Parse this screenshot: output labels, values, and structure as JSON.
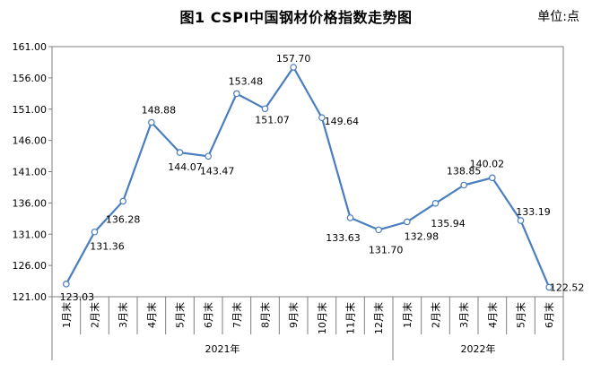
{
  "title": "图1  CSPI中国钢材价格指数走势图",
  "unit": "单位:点",
  "chart_data": {
    "type": "line",
    "title": "图1  CSPI中国钢材价格指数走势图",
    "categories": [
      "1月末",
      "2月末",
      "3月末",
      "4月末",
      "5月末",
      "6月末",
      "7月末",
      "8月末",
      "9月末",
      "10月末",
      "11月末",
      "12月末",
      "1月末",
      "2月末",
      "3月末",
      "4月末",
      "5月末",
      "6月末"
    ],
    "groups": [
      {
        "label": "2021年",
        "count": 12
      },
      {
        "label": "2022年",
        "count": 6
      }
    ],
    "series": [
      {
        "values": [
          123.03,
          131.36,
          136.28,
          148.88,
          144.07,
          143.47,
          153.48,
          151.07,
          157.7,
          149.64,
          133.63,
          131.7,
          132.98,
          135.94,
          138.85,
          140.02,
          133.19,
          122.52
        ],
        "labels": [
          "123.03",
          "131.36",
          "136.28",
          "148.88",
          "144.07",
          "143.47",
          "153.48",
          "151.07",
          "157.70",
          "149.64",
          "133.63",
          "131.70",
          "132.98",
          "135.94",
          "138.85",
          "140.02",
          "133.19",
          "122.52"
        ],
        "color": "#4a7ebf"
      }
    ],
    "yticks": [
      "121.00",
      "126.00",
      "131.00",
      "136.00",
      "141.00",
      "146.00",
      "151.00",
      "156.00",
      "161.00"
    ],
    "ylim": [
      121,
      161
    ],
    "grid": false,
    "legend": "none"
  }
}
